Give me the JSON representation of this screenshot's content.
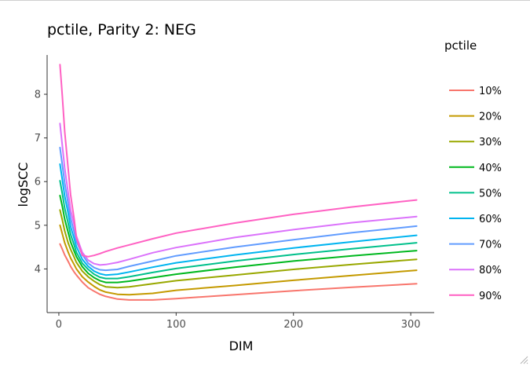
{
  "chart_data": {
    "type": "line",
    "title": "pctile, Parity 2: NEG",
    "xlabel": "DIM",
    "ylabel": "logSCC",
    "xlim": [
      -10,
      320
    ],
    "ylim": [
      3.0,
      8.9
    ],
    "x_ticks": [
      0,
      100,
      200,
      300
    ],
    "y_ticks": [
      4,
      5,
      6,
      7,
      8
    ],
    "grid": false,
    "legend": {
      "title": "pctile",
      "position": "right"
    },
    "x": [
      1,
      3,
      5,
      8,
      10,
      13,
      15,
      20,
      25,
      30,
      35,
      40,
      50,
      60,
      80,
      100,
      150,
      200,
      250,
      305
    ],
    "series": [
      {
        "name": "10%",
        "color": "#F8766D",
        "values": [
          4.57,
          4.45,
          4.32,
          4.17,
          4.06,
          3.93,
          3.86,
          3.7,
          3.57,
          3.49,
          3.42,
          3.37,
          3.31,
          3.29,
          3.29,
          3.32,
          3.41,
          3.5,
          3.58,
          3.66
        ]
      },
      {
        "name": "20%",
        "color": "#C49A00",
        "values": [
          5.0,
          4.8,
          4.6,
          4.38,
          4.25,
          4.1,
          4.0,
          3.82,
          3.7,
          3.6,
          3.52,
          3.47,
          3.42,
          3.41,
          3.44,
          3.51,
          3.62,
          3.74,
          3.85,
          3.97
        ]
      },
      {
        "name": "30%",
        "color": "#99A800",
        "values": [
          5.35,
          5.12,
          4.87,
          4.59,
          4.45,
          4.27,
          4.15,
          3.95,
          3.82,
          3.72,
          3.64,
          3.59,
          3.57,
          3.59,
          3.66,
          3.73,
          3.86,
          3.99,
          4.1,
          4.22
        ]
      },
      {
        "name": "40%",
        "color": "#00B81F",
        "values": [
          5.68,
          5.43,
          5.14,
          4.83,
          4.62,
          4.41,
          4.28,
          4.05,
          3.9,
          3.8,
          3.73,
          3.69,
          3.69,
          3.72,
          3.8,
          3.88,
          4.04,
          4.18,
          4.3,
          4.42
        ]
      },
      {
        "name": "50%",
        "color": "#00C08B",
        "values": [
          6.02,
          5.72,
          5.39,
          5.04,
          4.79,
          4.55,
          4.38,
          4.13,
          3.99,
          3.88,
          3.81,
          3.78,
          3.78,
          3.82,
          3.92,
          4.01,
          4.18,
          4.33,
          4.46,
          4.6
        ]
      },
      {
        "name": "60%",
        "color": "#00B4F0",
        "values": [
          6.4,
          6.04,
          5.67,
          5.27,
          4.97,
          4.7,
          4.51,
          4.22,
          4.06,
          3.95,
          3.89,
          3.86,
          3.88,
          3.93,
          4.04,
          4.14,
          4.32,
          4.48,
          4.62,
          4.77
        ]
      },
      {
        "name": "70%",
        "color": "#619CFF",
        "values": [
          6.78,
          6.38,
          5.97,
          5.48,
          5.16,
          4.85,
          4.63,
          4.33,
          4.13,
          4.03,
          3.98,
          3.97,
          3.99,
          4.06,
          4.18,
          4.3,
          4.5,
          4.67,
          4.83,
          4.98
        ]
      },
      {
        "name": "80%",
        "color": "#DB72FB",
        "values": [
          7.33,
          6.82,
          6.31,
          5.73,
          5.35,
          5.01,
          4.75,
          4.38,
          4.2,
          4.12,
          4.09,
          4.1,
          4.15,
          4.22,
          4.37,
          4.49,
          4.72,
          4.9,
          5.06,
          5.2
        ]
      },
      {
        "name": "90%",
        "color": "#FF61C3",
        "values": [
          8.68,
          7.95,
          7.15,
          6.28,
          5.7,
          5.15,
          4.72,
          4.31,
          4.28,
          4.31,
          4.35,
          4.4,
          4.48,
          4.55,
          4.69,
          4.82,
          5.05,
          5.25,
          5.42,
          5.58
        ]
      }
    ]
  },
  "icons": {
    "resize_grip": "resize-grip-icon"
  }
}
